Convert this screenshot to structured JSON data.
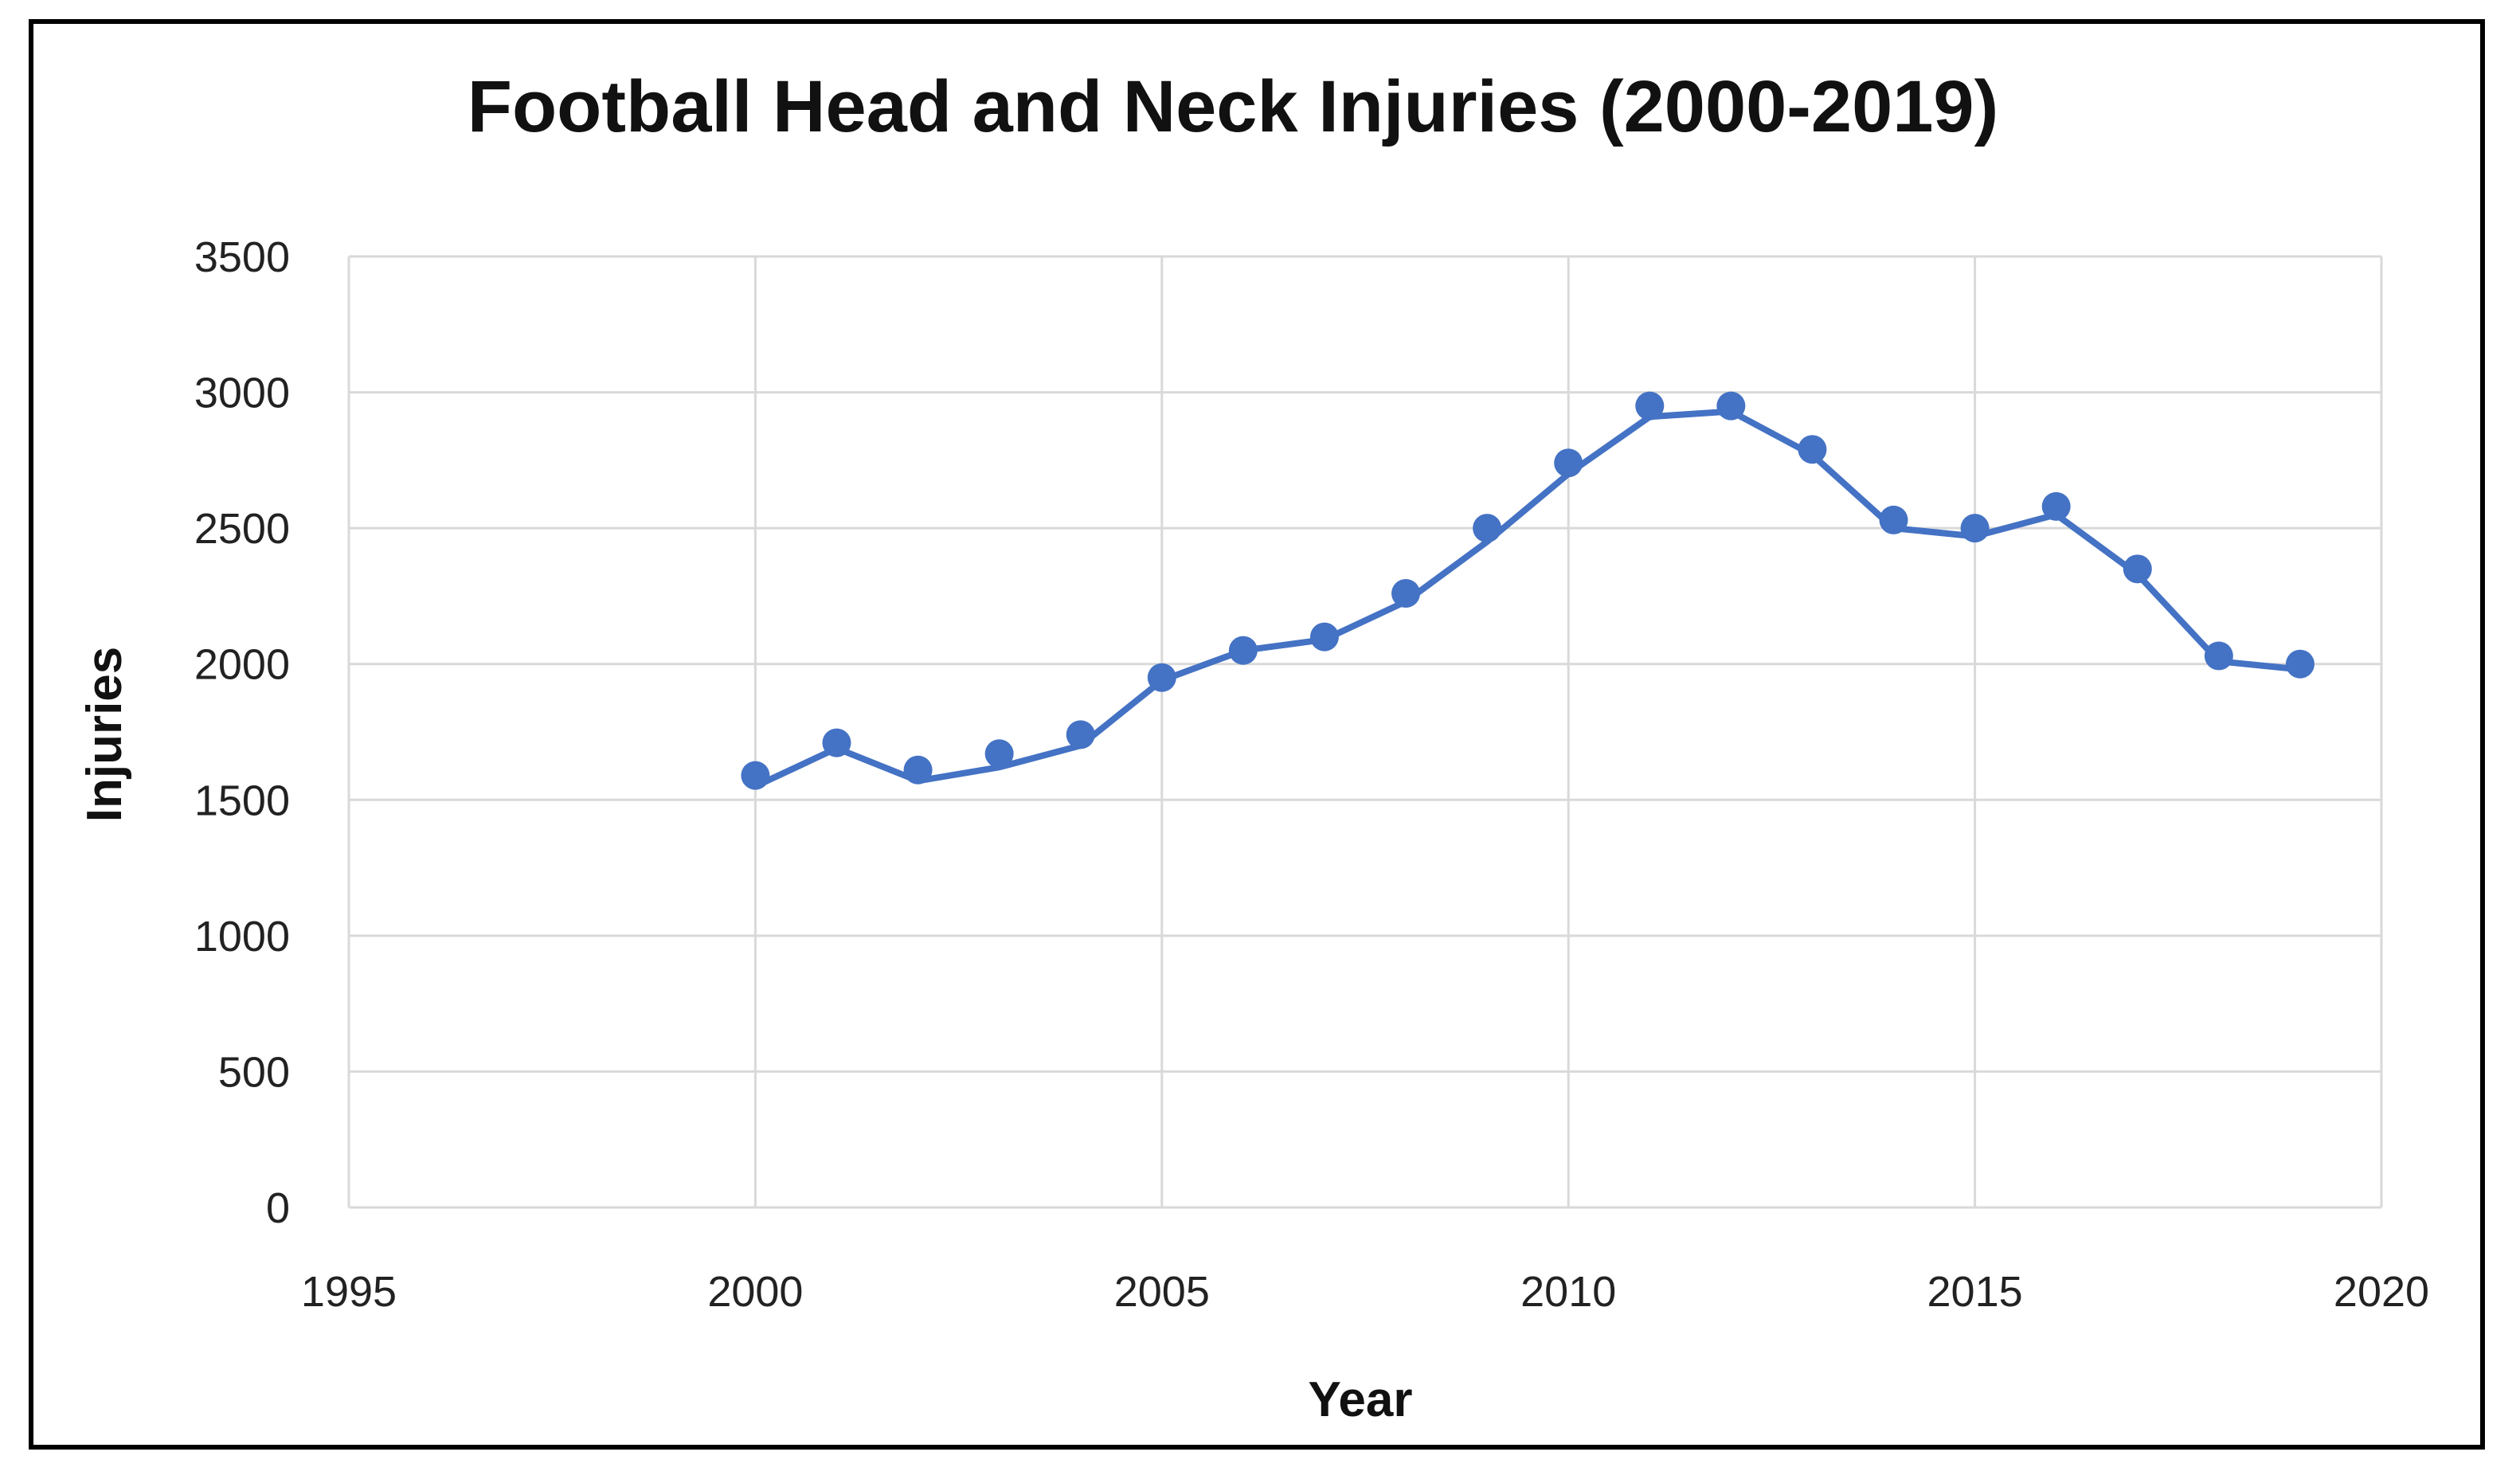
{
  "chart_data": {
    "type": "scatter",
    "title": "Football Head and Neck Injuries (2000-2019)",
    "xlabel": "Year",
    "ylabel": "Injuries",
    "xlim": [
      1995,
      2020
    ],
    "ylim": [
      0,
      3500
    ],
    "xticks": [
      1995,
      2000,
      2005,
      2010,
      2015,
      2020
    ],
    "yticks": [
      0,
      500,
      1000,
      1500,
      2000,
      2500,
      3000,
      3500
    ],
    "grid": true,
    "legend": "none",
    "series": [
      {
        "x": [
          2000,
          2001,
          2002,
          2003,
          2004,
          2005,
          2006,
          2007,
          2008,
          2009,
          2010,
          2011,
          2012,
          2013,
          2014,
          2015,
          2016,
          2017,
          2018,
          2019
        ],
        "y": [
          1590,
          1710,
          1610,
          1670,
          1740,
          1950,
          2050,
          2100,
          2260,
          2500,
          2740,
          2950,
          2950,
          2790,
          2530,
          2500,
          2580,
          2350,
          2030,
          2000
        ],
        "trend_y": [
          1550,
          1690,
          1570,
          1620,
          1700,
          1940,
          2050,
          2090,
          2230,
          2450,
          2700,
          2910,
          2930,
          2770,
          2500,
          2470,
          2550,
          2330,
          2010,
          1980
        ],
        "color": "#4472C4",
        "marker": "circle"
      }
    ]
  }
}
